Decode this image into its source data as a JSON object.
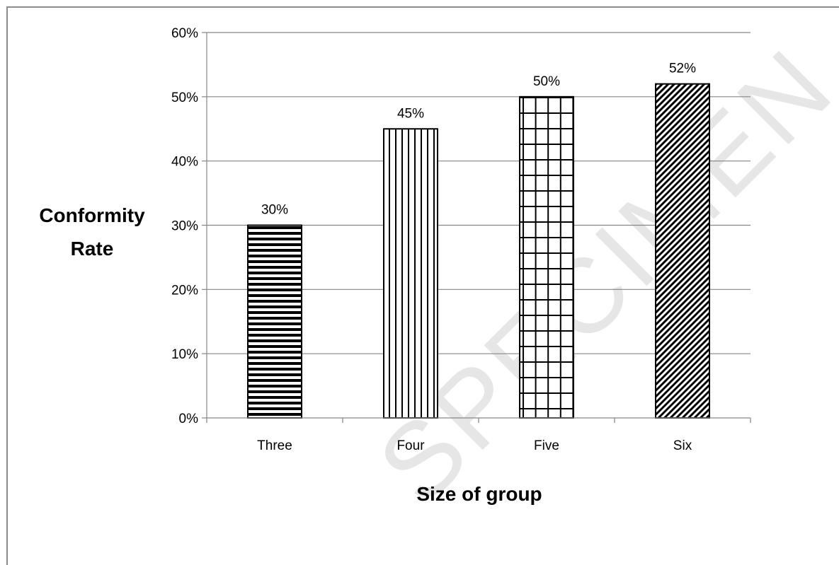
{
  "chart_data": {
    "type": "bar",
    "categories": [
      "Three",
      "Four",
      "Five",
      "Six"
    ],
    "values": [
      30,
      45,
      50,
      52
    ],
    "value_labels": [
      "30%",
      "45%",
      "50%",
      "52%"
    ],
    "patterns": [
      "horizontal-lines",
      "vertical-lines",
      "grid",
      "diagonal-lines"
    ],
    "title": "",
    "xlabel": "Size of group",
    "ylabel": [
      "Conformity",
      "Rate"
    ],
    "ylim": [
      0,
      60
    ],
    "yticks": [
      0,
      10,
      20,
      30,
      40,
      50,
      60
    ],
    "ytick_labels": [
      "0%",
      "10%",
      "20%",
      "30%",
      "40%",
      "50%",
      "60%"
    ],
    "grid": true,
    "legend": "none",
    "colors": {
      "bar_stroke": "#000000",
      "bar_fill": "#ffffff",
      "grid": "#868686"
    }
  },
  "watermark": "SPECIMEN"
}
